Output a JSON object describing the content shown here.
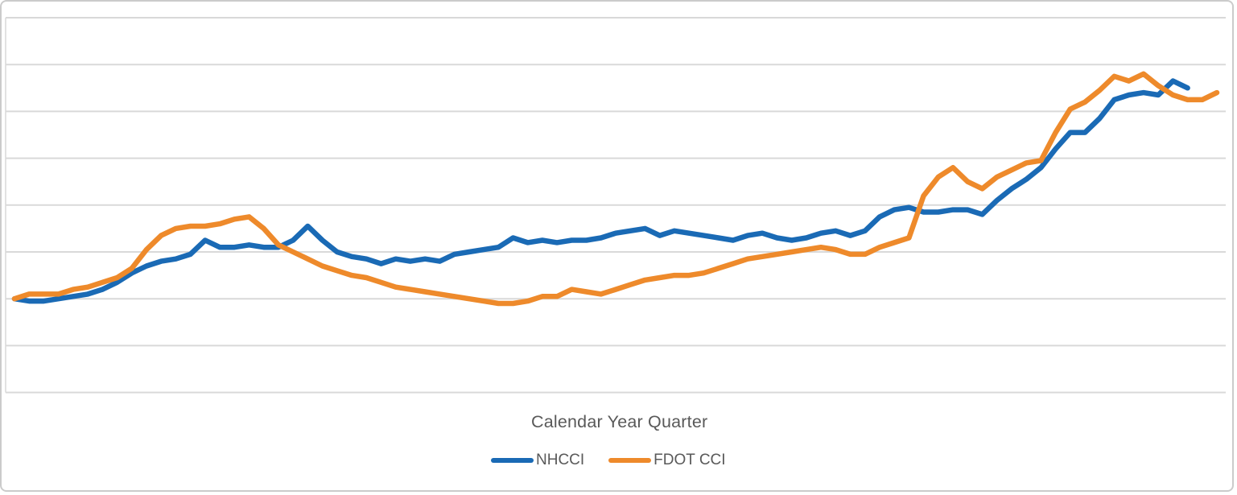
{
  "chart": {
    "x_axis_title": "Calendar Year Quarter",
    "legend_items": [
      {
        "label": "NHCCI",
        "color": "#1a6ab5"
      },
      {
        "label": "FDOT CCI",
        "color": "#ee8a2b"
      }
    ]
  },
  "colors": {
    "nhcci_line": "#1a6ab5",
    "fdot_line": "#ee8a2b",
    "gridline": "#d9d9d9",
    "axis_line": "#d9d9d9",
    "text": "#595959",
    "frame_border": "#cbcbcb",
    "background": "#ffffff"
  },
  "chart_data": {
    "type": "line",
    "title": "",
    "xlabel": "Calendar Year Quarter",
    "ylabel": "",
    "x_unit": "quarter index (no tick labels shown in image)",
    "ylim": [
      0.6,
      2.2
    ],
    "gridline_step": 0.2,
    "baseline_value": 1.0,
    "grid": true,
    "legend_position": "bottom",
    "note": "No axis tick labels are visible; y values are index estimates read from unlabeled gridlines with the series start taken as 1.0 and 0.2 per gridline.",
    "series": [
      {
        "name": "NHCCI",
        "color": "#1a6ab5",
        "values": [
          1.0,
          0.99,
          0.99,
          1.0,
          1.01,
          1.02,
          1.04,
          1.07,
          1.11,
          1.14,
          1.16,
          1.17,
          1.19,
          1.25,
          1.22,
          1.22,
          1.23,
          1.22,
          1.22,
          1.25,
          1.31,
          1.25,
          1.2,
          1.18,
          1.17,
          1.15,
          1.17,
          1.16,
          1.17,
          1.16,
          1.19,
          1.2,
          1.21,
          1.22,
          1.26,
          1.24,
          1.25,
          1.24,
          1.25,
          1.25,
          1.26,
          1.28,
          1.29,
          1.3,
          1.27,
          1.29,
          1.28,
          1.27,
          1.26,
          1.25,
          1.27,
          1.28,
          1.26,
          1.25,
          1.26,
          1.28,
          1.29,
          1.27,
          1.29,
          1.35,
          1.38,
          1.39,
          1.37,
          1.37,
          1.38,
          1.38,
          1.36,
          1.42,
          1.47,
          1.51,
          1.56,
          1.64,
          1.71,
          1.71,
          1.77,
          1.85,
          1.87,
          1.88,
          1.87,
          1.93,
          1.9
        ]
      },
      {
        "name": "FDOT CCI",
        "color": "#ee8a2b",
        "values": [
          1.0,
          1.02,
          1.02,
          1.02,
          1.04,
          1.05,
          1.07,
          1.09,
          1.13,
          1.21,
          1.27,
          1.3,
          1.31,
          1.31,
          1.32,
          1.34,
          1.35,
          1.3,
          1.23,
          1.2,
          1.17,
          1.14,
          1.12,
          1.1,
          1.09,
          1.07,
          1.05,
          1.04,
          1.03,
          1.02,
          1.01,
          1.0,
          0.99,
          0.98,
          0.98,
          0.99,
          1.01,
          1.01,
          1.04,
          1.03,
          1.02,
          1.04,
          1.06,
          1.08,
          1.09,
          1.1,
          1.1,
          1.11,
          1.13,
          1.15,
          1.17,
          1.18,
          1.19,
          1.2,
          1.21,
          1.22,
          1.21,
          1.19,
          1.19,
          1.22,
          1.24,
          1.26,
          1.44,
          1.52,
          1.56,
          1.5,
          1.47,
          1.52,
          1.55,
          1.58,
          1.59,
          1.71,
          1.81,
          1.84,
          1.89,
          1.95,
          1.93,
          1.96,
          1.91,
          1.87,
          1.85,
          1.85,
          1.88
        ]
      }
    ]
  }
}
